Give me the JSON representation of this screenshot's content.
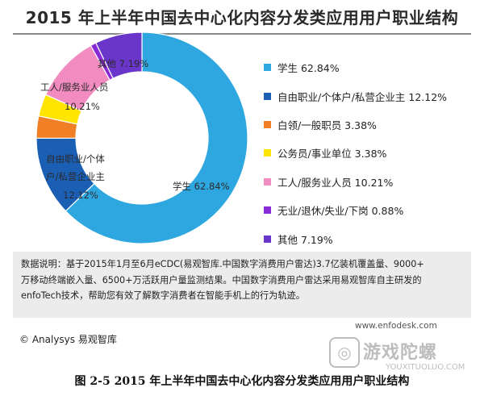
{
  "chart_data": {
    "type": "pie",
    "style": "donut",
    "title": "2015 年上半年中国去中心化内容分发类应用用户职业结构",
    "categories": [
      "学生",
      "自由职业/个体户/私营企业主",
      "白领/一般职员",
      "公务员/事业单位",
      "工人/服务业人员",
      "无业/退休/失业/下岗",
      "其他"
    ],
    "values": [
      62.84,
      12.12,
      3.38,
      3.38,
      10.21,
      0.88,
      7.19
    ],
    "unit": "%",
    "colors": [
      "#2ea7e0",
      "#1b5fb5",
      "#f07f26",
      "#ffe500",
      "#f28bbf",
      "#8a2ad6",
      "#6a35c9"
    ],
    "legend": [
      "学生 62.84%",
      "自由职业/个体户/私营企业主 12.12%",
      "白领/一般职员 3.38%",
      "公务员/事业单位 3.38%",
      "工人/服务业人员 10.21%",
      "无业/退休/失业/下岗 0.88%",
      "其他 7.19%"
    ],
    "slice_labels": {
      "student": "学生 62.84%",
      "freelance_line1": "自由职业/个体",
      "freelance_line2": "户/私营企业主",
      "freelance_line3": "12.12%",
      "worker_line1": "工人/服务业人员",
      "worker_line2": "10.21%",
      "other": "其他 7.19%"
    },
    "legend_position": "right"
  },
  "note": {
    "line1": "数据说明：基于2015年1月至6月eCDC(易观智库.中国数字消费用户雷达)3.7亿装机覆盖量、9000+",
    "line2": "万移动终端嵌入量、6500+万活跃用户量监测结果。中国数字消费用户雷达采用易观智库自主研发的",
    "line3": "enfoTech技术，帮助您有效了解数字消费者在智能手机上的行为轨迹。"
  },
  "source": "© Analysys 易观智库",
  "watermark": {
    "url": "www.enfodesk.com",
    "brand": "游戏陀螺",
    "domain": "YOUXITUOLUO.COM"
  },
  "caption": "图 2-5 2015 年上半年中国去中心化内容分发类应用用户职业结构"
}
